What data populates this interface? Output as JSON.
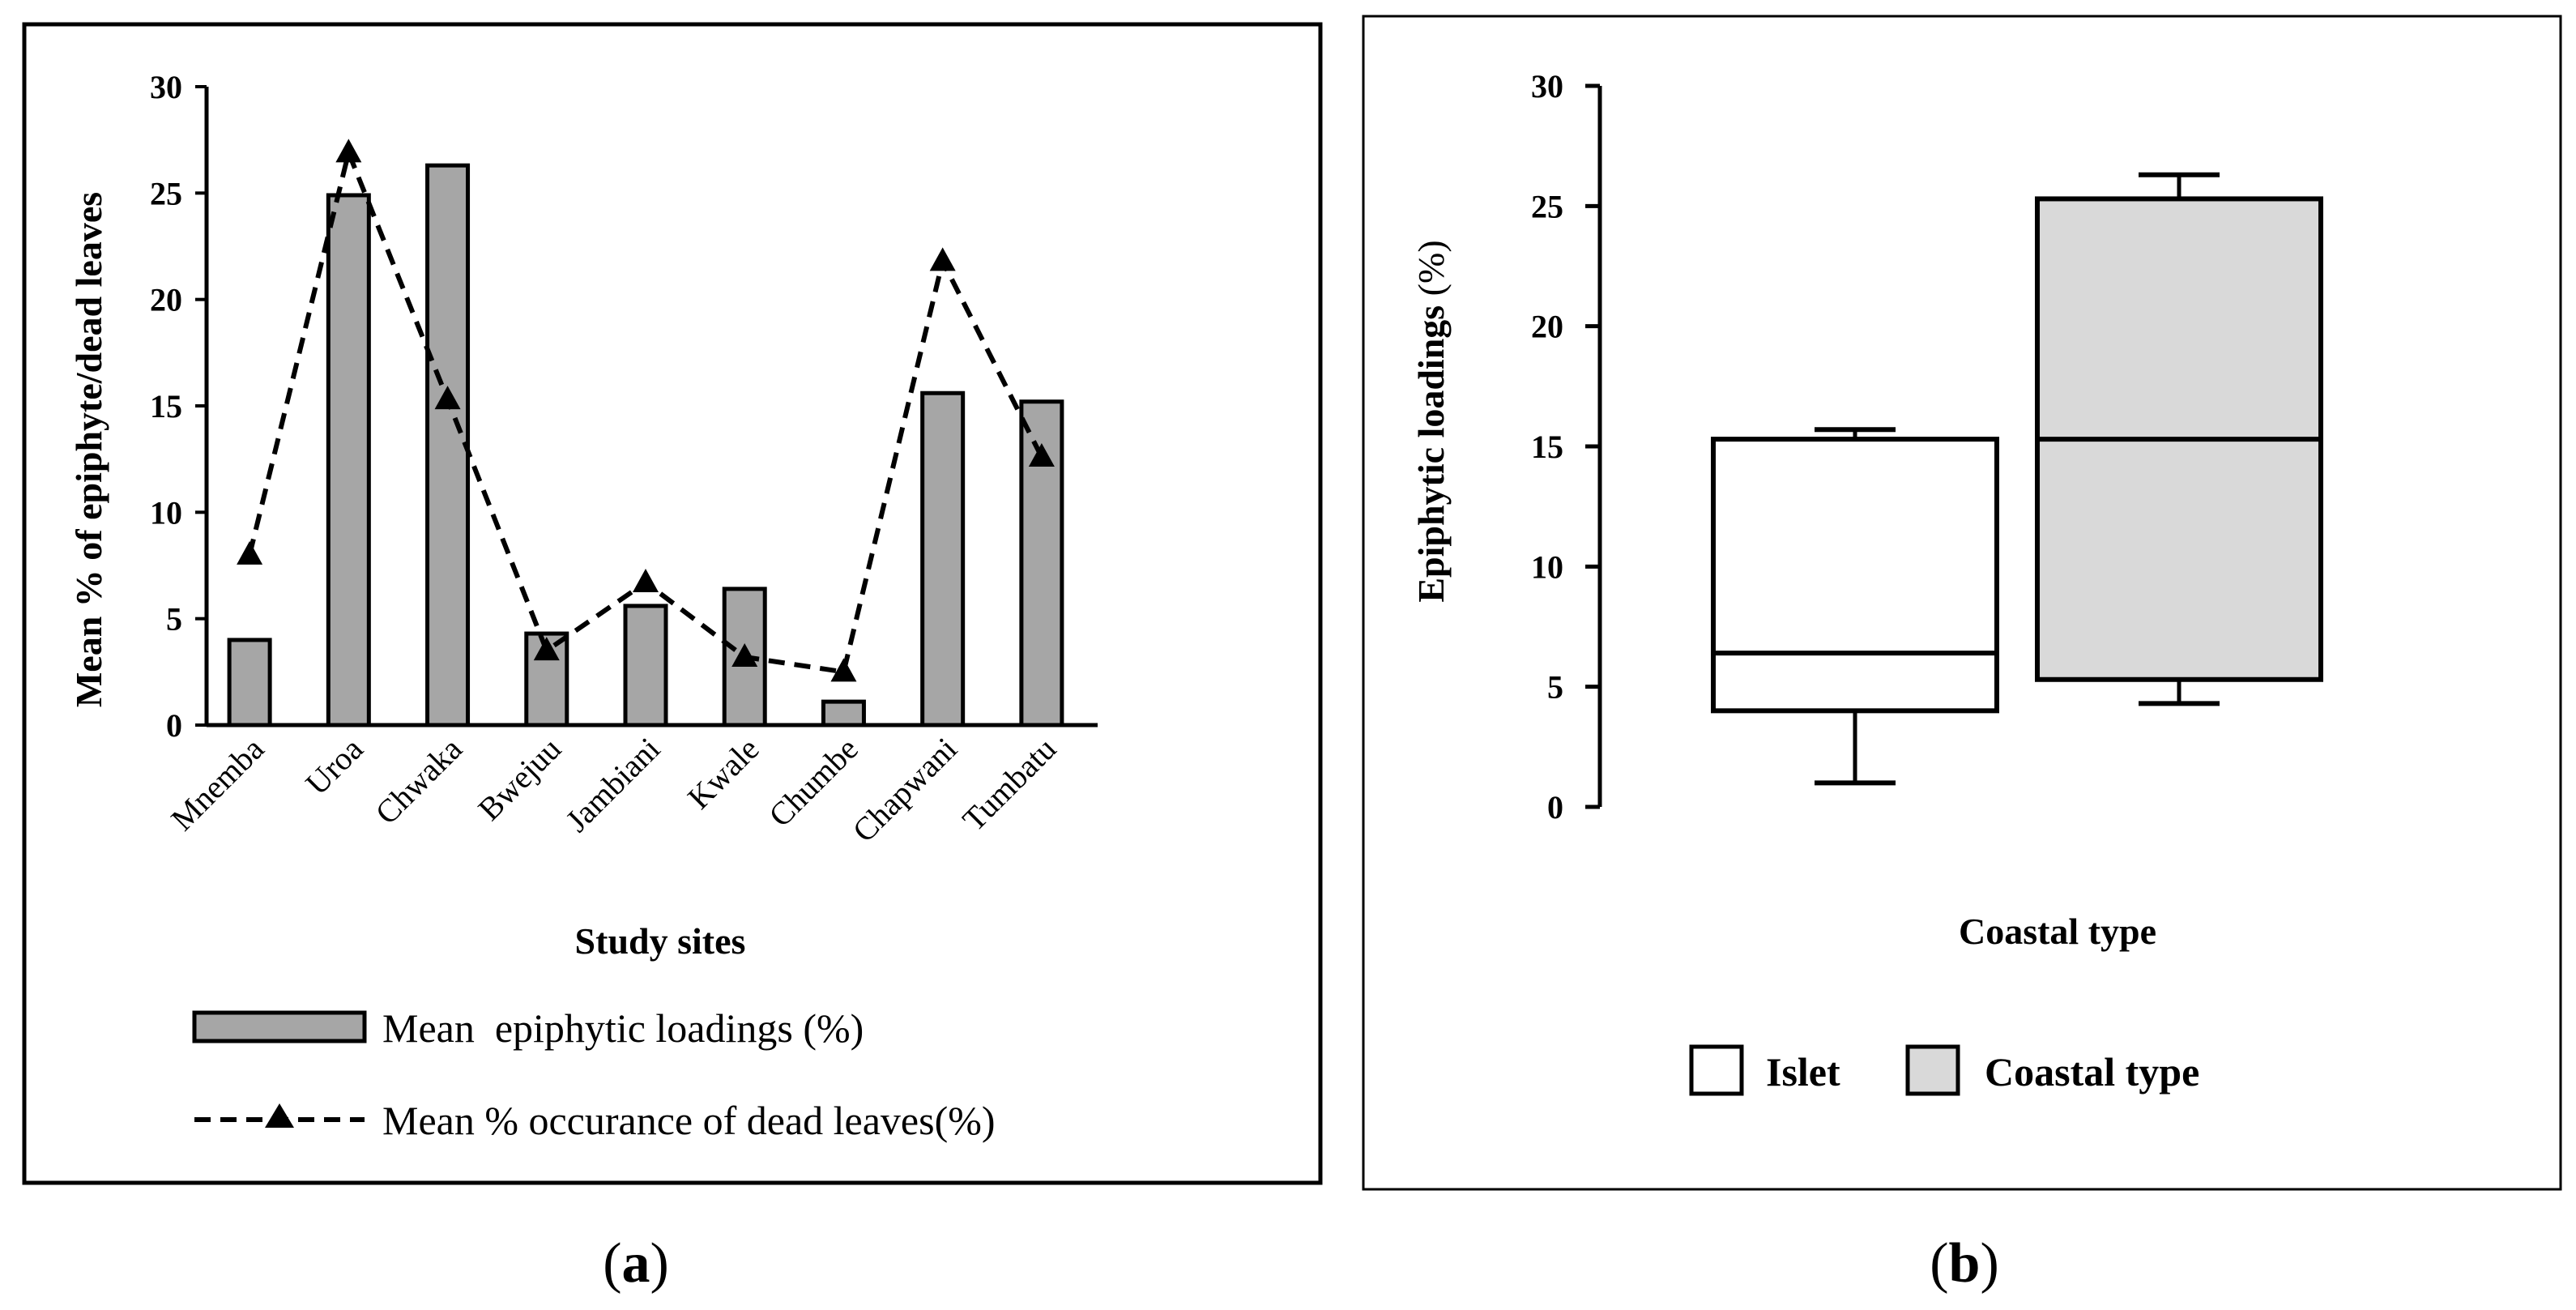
{
  "chart_data": [
    {
      "type": "bar",
      "panel_label": "a",
      "categories": [
        "Mnemba",
        "Uroa",
        "Chwaka",
        "Bwejuu",
        "Jambiani",
        "Kwale",
        "Chumbe",
        "Chapwani",
        "Tumbatu"
      ],
      "series": [
        {
          "name": "Mean  epiphytic loadings (%)",
          "kind": "bar",
          "values": [
            4.0,
            24.9,
            26.3,
            4.3,
            5.6,
            6.4,
            1.1,
            15.6,
            15.2
          ]
        },
        {
          "name": "Mean % occurance of dead leaves(%)",
          "kind": "line",
          "values": [
            8.0,
            26.9,
            15.3,
            3.5,
            6.7,
            3.2,
            2.5,
            21.8,
            12.6
          ]
        }
      ],
      "xlabel": "Study sites",
      "ylabel": "Mean % of epiphyte/dead leaves",
      "ylim": [
        0,
        30
      ],
      "yticks": [
        0,
        5,
        10,
        15,
        20,
        25,
        30
      ],
      "legend_position": "bottom",
      "colors": {
        "bar": "#a6a6a6",
        "line": "#000000"
      }
    },
    {
      "type": "box",
      "panel_label": "b",
      "categories": [
        "Islet",
        "Coastal type"
      ],
      "boxes": [
        {
          "name": "Islet",
          "whisker_low": 1.0,
          "q1": 4.0,
          "median": 6.4,
          "q3": 15.3,
          "whisker_high": 15.7,
          "color": "#ffffff"
        },
        {
          "name": "Coastal type",
          "whisker_low": 4.3,
          "q1": 5.3,
          "median": 15.3,
          "q3": 25.3,
          "whisker_high": 26.3,
          "color": "#d9d9d9"
        }
      ],
      "xlabel": "Coastal type",
      "ylabel_bold": "Epiphytic loadings",
      "ylabel_unit": "(%)",
      "ylim": [
        0,
        30
      ],
      "yticks": [
        0,
        5,
        10,
        15,
        20,
        25,
        30
      ],
      "legend_position": "bottom"
    }
  ]
}
